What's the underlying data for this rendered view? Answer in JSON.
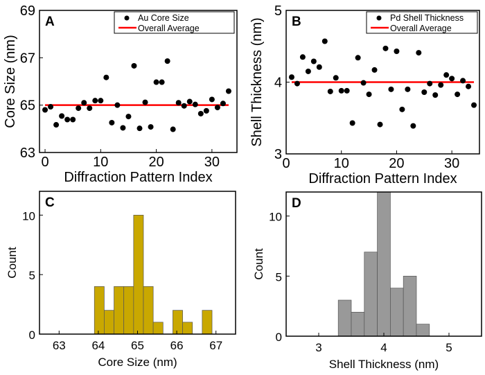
{
  "colors": {
    "points": "#000000",
    "average": "#ff0000",
    "hist_c": "#c9a800",
    "hist_d": "#999999"
  },
  "chart_data": [
    {
      "panel": "A",
      "type": "scatter",
      "xlabel": "Diffraction Pattern Index",
      "ylabel": "Core Size (nm)",
      "xlim": [
        -1,
        34.5
      ],
      "ylim": [
        63,
        69
      ],
      "xticks": [
        0,
        10,
        20,
        30
      ],
      "yticks": [
        63,
        65,
        67,
        69
      ],
      "legend": [
        "Au Core Size",
        "Overall Average"
      ],
      "legend_position": "top-right",
      "x": [
        0,
        1,
        2,
        3,
        4,
        5,
        6,
        7,
        8,
        9,
        10,
        11,
        12,
        13,
        14,
        15,
        16,
        17,
        18,
        19,
        20,
        21,
        22,
        23,
        24,
        25,
        26,
        27,
        28,
        29,
        30,
        31,
        32,
        33
      ],
      "y": [
        64.8,
        64.93,
        64.17,
        64.54,
        64.39,
        64.39,
        64.87,
        65.1,
        64.87,
        65.19,
        65.19,
        66.17,
        64.26,
        65.0,
        64.04,
        64.52,
        66.66,
        64.02,
        65.12,
        64.08,
        65.97,
        65.97,
        66.86,
        63.98,
        65.1,
        64.97,
        65.15,
        65.03,
        64.64,
        64.76,
        65.24,
        64.9,
        65.07,
        65.59
      ],
      "average": 65.0,
      "average_range": [
        0,
        33
      ]
    },
    {
      "panel": "B",
      "type": "scatter",
      "xlabel": "Diffraction Pattern Index",
      "ylabel": "Shell Thickness (nm)",
      "xlim": [
        0,
        35
      ],
      "ylim": [
        3,
        5
      ],
      "xticks": [
        0,
        10,
        20,
        30
      ],
      "yticks": [
        3,
        4,
        5
      ],
      "legend": [
        "Pd Shell Thickness",
        "Overall Average"
      ],
      "legend_position": "top-right",
      "x": [
        1,
        2,
        3,
        4,
        5,
        6,
        7,
        8,
        9,
        10,
        11,
        12,
        13,
        14,
        15,
        16,
        17,
        18,
        19,
        20,
        21,
        22,
        23,
        24,
        25,
        26,
        27,
        28,
        29,
        30,
        31,
        32,
        33,
        34
      ],
      "y": [
        4.07,
        3.98,
        4.35,
        4.15,
        4.29,
        4.21,
        4.57,
        3.87,
        4.06,
        3.88,
        3.88,
        3.43,
        4.34,
        3.99,
        3.83,
        4.17,
        3.41,
        4.47,
        3.9,
        4.43,
        3.62,
        3.9,
        3.39,
        4.41,
        3.86,
        3.98,
        3.82,
        3.96,
        4.1,
        4.05,
        3.83,
        4.02,
        3.94,
        3.68
      ],
      "average": 4.0,
      "average_range": [
        1,
        34
      ]
    },
    {
      "panel": "C",
      "type": "bar",
      "xlabel": "Core Size (nm)",
      "ylabel": "Count",
      "xlim": [
        62.5,
        67.5
      ],
      "ylim": [
        0,
        12
      ],
      "xticks": [
        63,
        64,
        65,
        66,
        67
      ],
      "yticks": [
        0,
        5,
        10
      ],
      "bin_width": 0.25,
      "bin_starts": [
        63.9,
        64.15,
        64.4,
        64.65,
        64.9,
        65.15,
        65.4,
        65.9,
        66.15,
        66.65
      ],
      "values": [
        4,
        2,
        4,
        4,
        10,
        4,
        1,
        2,
        1,
        2
      ]
    },
    {
      "panel": "D",
      "type": "bar",
      "xlabel": "Shell Thickness (nm)",
      "ylabel": "Count",
      "xlim": [
        2.5,
        5.5
      ],
      "ylim": [
        0,
        12
      ],
      "xticks": [
        3,
        4,
        5
      ],
      "yticks": [
        0,
        5,
        10
      ],
      "bin_width": 0.2,
      "bin_starts": [
        3.3,
        3.5,
        3.7,
        3.9,
        4.1,
        4.3,
        4.5
      ],
      "values": [
        3,
        2,
        7,
        12,
        4,
        5,
        1
      ]
    }
  ]
}
